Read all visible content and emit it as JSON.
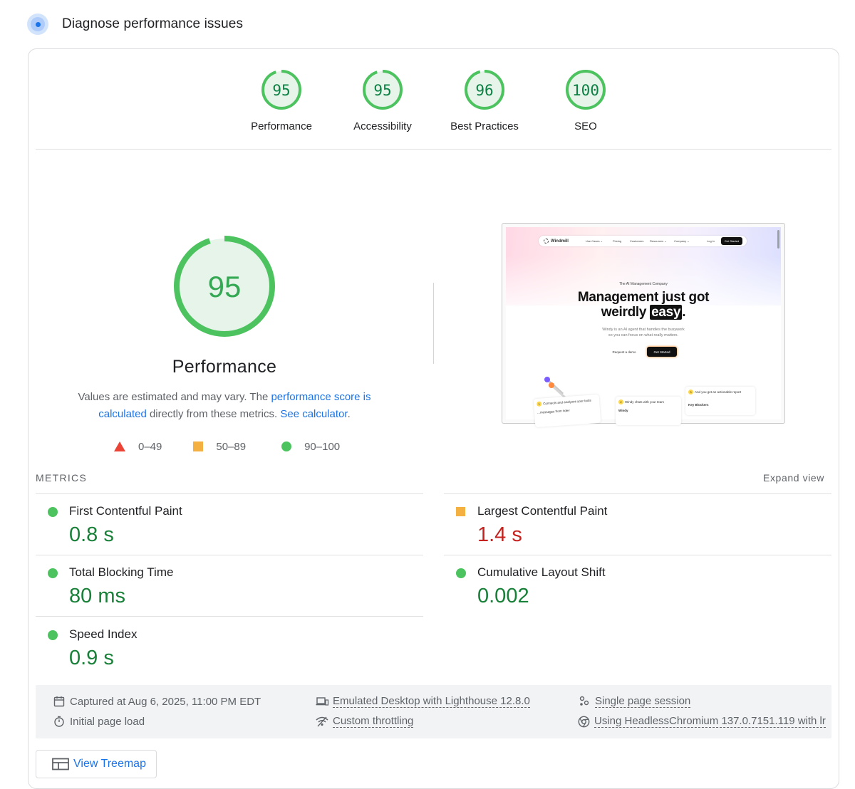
{
  "header": {
    "title": "Diagnose performance issues"
  },
  "categories": [
    {
      "label": "Performance",
      "score": "95",
      "value": 95
    },
    {
      "label": "Accessibility",
      "score": "95",
      "value": 95
    },
    {
      "label": "Best Practices",
      "score": "96",
      "value": 96
    },
    {
      "label": "SEO",
      "score": "100",
      "value": 100
    }
  ],
  "main_gauge": {
    "score": "95",
    "value": 95,
    "title": "Performance"
  },
  "description": {
    "part1": "Values are estimated and may vary. The ",
    "link1": "performance score is calculated",
    "part2": " directly from these metrics. ",
    "link2": "See calculator",
    "part3": "."
  },
  "legend": {
    "fail": "0–49",
    "average": "50–89",
    "pass": "90–100"
  },
  "screenshot": {
    "nav": {
      "logo": "Windmill",
      "links": [
        "Use Cases ⌄",
        "Pricing",
        "Customers",
        "Resources ⌄",
        "Company ⌄",
        "Log in"
      ],
      "cta": "Get Started"
    },
    "eyebrow": "The AI Management Company",
    "headline_line1": "Management just got",
    "headline_line2_pre": "weirdly ",
    "headline_highlight": "easy",
    "headline_line2_post": ".",
    "subtitle_line1": "Windy is an AI agent that handles the busywork",
    "subtitle_line2": "so you can focus on what really matters.",
    "secondary_button": "Request a demo",
    "primary_button": "Get Started",
    "cards": [
      "Connects and analyzes your tools",
      "Windy chats with your team",
      "And you get an actionable report"
    ],
    "card_extra": [
      "...messages from #dev",
      "Windy",
      "Key Blockers"
    ]
  },
  "metrics_section": {
    "title": "METRICS",
    "expand": "Expand view"
  },
  "metrics": [
    {
      "label": "First Contentful Paint",
      "value": "0.8 s",
      "rating": "pass"
    },
    {
      "label": "Largest Contentful Paint",
      "value": "1.4 s",
      "rating": "average"
    },
    {
      "label": "Total Blocking Time",
      "value": "80 ms",
      "rating": "pass"
    },
    {
      "label": "Cumulative Layout Shift",
      "value": "0.002",
      "rating": "pass"
    },
    {
      "label": "Speed Index",
      "value": "0.9 s",
      "rating": "pass"
    }
  ],
  "runtime": {
    "captured": "Captured at Aug 6, 2025, 11:00 PM EDT",
    "initial_load": "Initial page load",
    "emulated": "Emulated Desktop with Lighthouse 12.8.0",
    "throttling": "Custom throttling",
    "session": "Single page session",
    "browser": "Using HeadlessChromium 137.0.7151.119 with lr"
  },
  "treemap": {
    "label": "View Treemap"
  },
  "colors": {
    "pass": "#0b8043",
    "pass_ring": "#4cc35f",
    "average": "#f4b142",
    "average_text": "#c5221f",
    "fail": "#eb4335",
    "link": "#1a73e8"
  },
  "icons": {
    "header": "lighthouse-target-icon",
    "calendar": "calendar-icon",
    "timer": "timer-icon",
    "device": "desktop-device-icon",
    "wifi": "network-throttle-icon",
    "session": "session-icon",
    "chrome": "chrome-icon",
    "treemap": "treemap-icon"
  }
}
